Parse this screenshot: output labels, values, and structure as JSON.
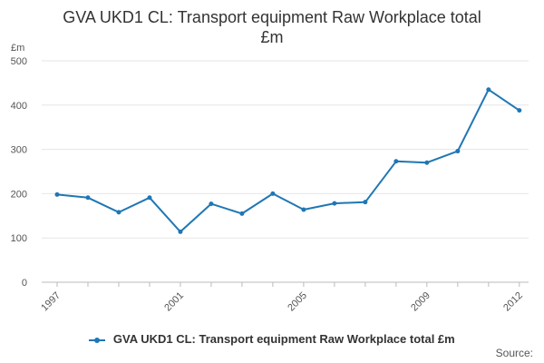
{
  "title_lines": [
    "GVA UKD1 CL: Transport equipment Raw Workplace total",
    "£m"
  ],
  "source_label": "Source:",
  "chart_data": {
    "type": "line",
    "title": "GVA UKD1 CL: Transport equipment Raw Workplace total £m",
    "unit_label": "£m",
    "x": [
      1997,
      1998,
      1999,
      2000,
      2001,
      2002,
      2003,
      2004,
      2005,
      2006,
      2007,
      2008,
      2009,
      2010,
      2011,
      2012
    ],
    "x_tick_labels": [
      "1997",
      "2001",
      "2005",
      "2009",
      "2012"
    ],
    "y_ticks": [
      0,
      100,
      200,
      300,
      400,
      500
    ],
    "ylim": [
      0,
      500
    ],
    "grid": true,
    "legend_position": "bottom",
    "series": [
      {
        "name": "GVA UKD1 CL: Transport equipment Raw Workplace total £m",
        "color": "#1f77b4",
        "values": [
          198,
          191,
          158,
          191,
          114,
          177,
          155,
          200,
          164,
          178,
          181,
          273,
          270,
          296,
          435,
          388
        ]
      }
    ]
  }
}
